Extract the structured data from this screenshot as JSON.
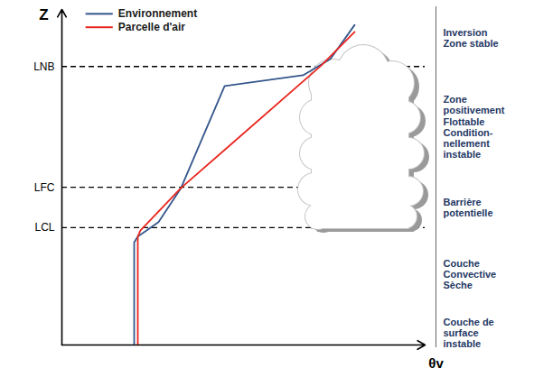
{
  "chart_data": {
    "type": "line",
    "x_label": "θv",
    "y_label": "Z",
    "xlim": [
      0,
      100
    ],
    "ylim": [
      0,
      100
    ],
    "xticks": [],
    "yticks": [
      {
        "value": 35,
        "label": "LCL"
      },
      {
        "value": 47,
        "label": "LFC"
      },
      {
        "value": 83,
        "label": "LNB"
      }
    ],
    "tick_labels": "y",
    "grid": true,
    "legend": "top-left",
    "series": [
      {
        "name": "Environnement",
        "color": "#34568b",
        "line_style": "solid",
        "x": [
          19.9,
          19.9,
          20.9,
          26.6,
          32.8,
          44.8,
          66.4,
          73.9,
          80.6
        ],
        "values": [
          0,
          30.6,
          32.3,
          36.6,
          46.8,
          77.2,
          80.4,
          85.2,
          95.4
        ]
      },
      {
        "name": "Parcelle d'air",
        "color": "#e8261f",
        "line_style": "solid",
        "x": [
          20.9,
          20.9,
          21.6,
          32.8,
          71.4,
          80.6
        ],
        "values": [
          0,
          32.3,
          34.1,
          46.8,
          83.3,
          93.3
        ]
      }
    ],
    "zones": [
      {
        "label": [
          "Inversion",
          "Zone stable"
        ],
        "range": [
          83,
          100
        ]
      },
      {
        "label": [
          "Zone",
          "positivement",
          "Flottable",
          "Condition-",
          "nellement",
          "instable"
        ],
        "range": [
          47,
          83
        ]
      },
      {
        "label": [
          "Barrière",
          "potentielle"
        ],
        "range": [
          35,
          47
        ]
      },
      {
        "label": [
          "Couche",
          "Convective",
          "Sèche"
        ],
        "range": [
          7,
          35
        ]
      },
      {
        "label": [
          "Couche de",
          "surface",
          "instable"
        ],
        "range": [
          0,
          7
        ]
      }
    ]
  }
}
